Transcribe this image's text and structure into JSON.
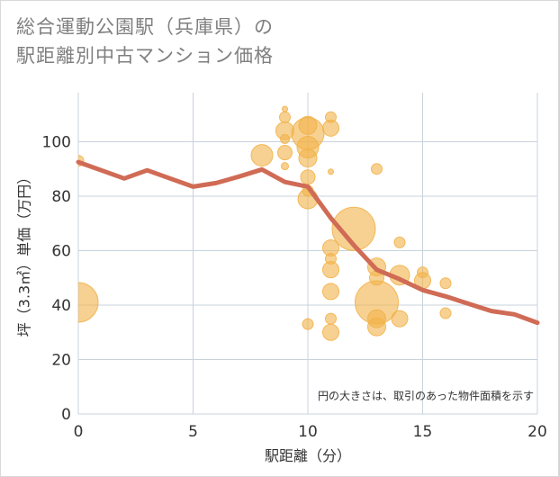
{
  "title": "総合運動公園駅（兵庫県）の\n駅距離別中古マンション価格",
  "colors": {
    "bubble": "#f2b24a",
    "line": "#d06b55",
    "grid": "#c8d3dc",
    "plot_bg": "#ffffff"
  },
  "chart_data": {
    "type": "scatter",
    "title": "総合運動公園駅（兵庫県）の\n駅距離別中古マンション価格",
    "xlabel": "駅距離（分）",
    "ylabel": "坪（3.3㎡）単価（万円）",
    "xlim": [
      0,
      20
    ],
    "ylim": [
      0,
      118
    ],
    "xticks": [
      0,
      5,
      10,
      15,
      20
    ],
    "yticks": [
      0,
      20,
      40,
      60,
      80,
      100
    ],
    "grid": true,
    "note": "円の大きさは、取引のあった物件面積を示す",
    "bubbles": [
      {
        "x": 0,
        "y": 93,
        "s": 6
      },
      {
        "x": 0,
        "y": 41,
        "s": 22
      },
      {
        "x": 8,
        "y": 95,
        "s": 12
      },
      {
        "x": 9,
        "y": 112,
        "s": 3
      },
      {
        "x": 9,
        "y": 109,
        "s": 6
      },
      {
        "x": 9,
        "y": 104,
        "s": 10
      },
      {
        "x": 9,
        "y": 101,
        "s": 5
      },
      {
        "x": 9,
        "y": 96,
        "s": 8
      },
      {
        "x": 9,
        "y": 91,
        "s": 4
      },
      {
        "x": 10,
        "y": 106,
        "s": 10
      },
      {
        "x": 10,
        "y": 103,
        "s": 18
      },
      {
        "x": 10,
        "y": 98,
        "s": 12
      },
      {
        "x": 10,
        "y": 94,
        "s": 10
      },
      {
        "x": 10,
        "y": 87,
        "s": 8
      },
      {
        "x": 10,
        "y": 82,
        "s": 6
      },
      {
        "x": 10,
        "y": 79,
        "s": 11
      },
      {
        "x": 10,
        "y": 33,
        "s": 6
      },
      {
        "x": 11,
        "y": 109,
        "s": 6
      },
      {
        "x": 11,
        "y": 105,
        "s": 9
      },
      {
        "x": 11,
        "y": 89,
        "s": 3
      },
      {
        "x": 11,
        "y": 61,
        "s": 9
      },
      {
        "x": 11,
        "y": 57,
        "s": 6
      },
      {
        "x": 11,
        "y": 53,
        "s": 9
      },
      {
        "x": 11,
        "y": 45,
        "s": 9
      },
      {
        "x": 11,
        "y": 35,
        "s": 6
      },
      {
        "x": 11,
        "y": 30,
        "s": 9
      },
      {
        "x": 12,
        "y": 68,
        "s": 24
      },
      {
        "x": 13,
        "y": 90,
        "s": 6
      },
      {
        "x": 13,
        "y": 54,
        "s": 10
      },
      {
        "x": 13,
        "y": 50,
        "s": 8
      },
      {
        "x": 13,
        "y": 41,
        "s": 24
      },
      {
        "x": 13,
        "y": 35,
        "s": 10
      },
      {
        "x": 13,
        "y": 32,
        "s": 10
      },
      {
        "x": 14,
        "y": 63,
        "s": 6
      },
      {
        "x": 14,
        "y": 51,
        "s": 11
      },
      {
        "x": 14,
        "y": 35,
        "s": 9
      },
      {
        "x": 15,
        "y": 52,
        "s": 6
      },
      {
        "x": 15,
        "y": 49,
        "s": 9
      },
      {
        "x": 16,
        "y": 48,
        "s": 6
      },
      {
        "x": 16,
        "y": 37,
        "s": 6
      }
    ],
    "series": [
      {
        "x": [
          0,
          1,
          2,
          3,
          4,
          5,
          6,
          7,
          8,
          9,
          10,
          11,
          12,
          13,
          14,
          15,
          16,
          17,
          18,
          19,
          20
        ],
        "values": [
          92.5,
          89.5,
          86.5,
          89.5,
          86.5,
          83.5,
          84.8,
          87.2,
          89.8,
          85.2,
          83.5,
          72,
          62,
          53,
          49.5,
          45.5,
          43.2,
          40.5,
          37.8,
          36.6,
          33.5
        ]
      }
    ]
  }
}
